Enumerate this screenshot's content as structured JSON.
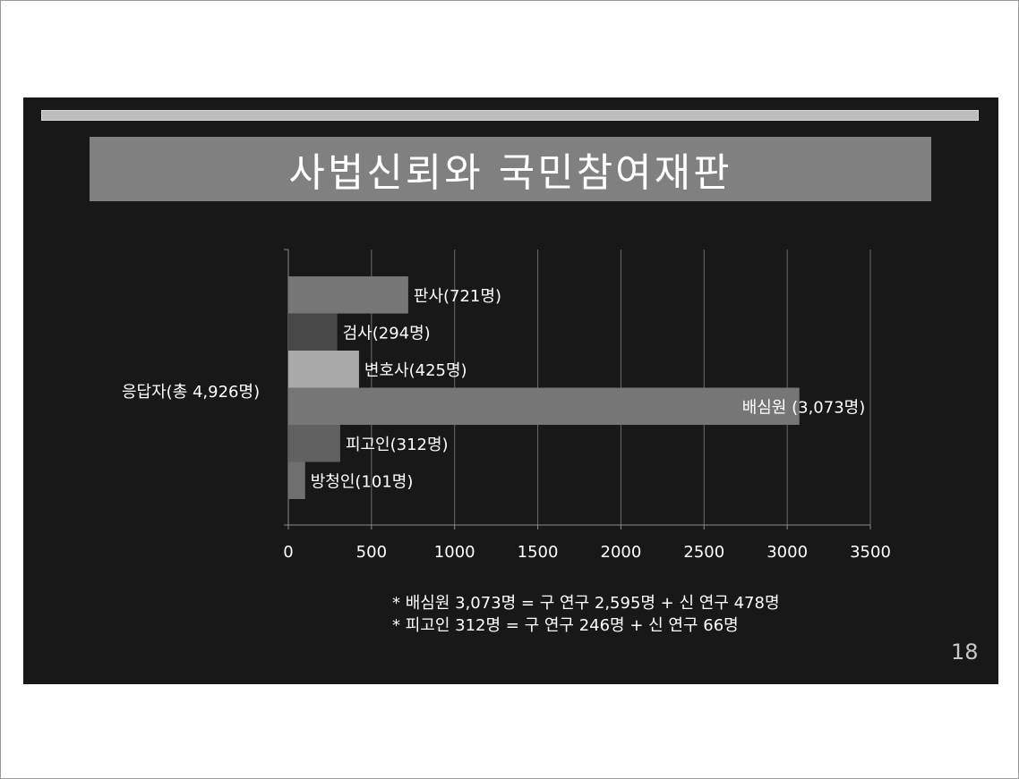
{
  "slide": {
    "title": "사법신뢰와 국민참여재판",
    "page_number": "18",
    "notes": [
      "* 배심원 3,073명 = 구 연구 2,595명 + 신 연구 478명",
      "* 피고인 312명 = 구 연구 246명 + 신 연구 66명"
    ]
  },
  "chart_data": {
    "type": "bar",
    "orientation": "horizontal",
    "group_label": "응답자(총 4,926명)",
    "categories": [
      "판사",
      "검사",
      "변호사",
      "배심원",
      "피고인",
      "방청인"
    ],
    "values": [
      721,
      294,
      425,
      3073,
      312,
      101
    ],
    "data_labels": [
      "판사(721명)",
      "검사(294명)",
      "변호사(425명)",
      "배심원 (3,073명)",
      "피고인(312명)",
      "방청인(101명)"
    ],
    "colors": [
      "#767676",
      "#474747",
      "#a9a9a9",
      "#767676",
      "#616161",
      "#6f6f6f"
    ],
    "xlim": [
      0,
      3500
    ],
    "xticks": [
      0,
      500,
      1000,
      1500,
      2000,
      2500,
      3000,
      3500
    ],
    "grid": true,
    "title": "",
    "xlabel": "",
    "ylabel": ""
  }
}
